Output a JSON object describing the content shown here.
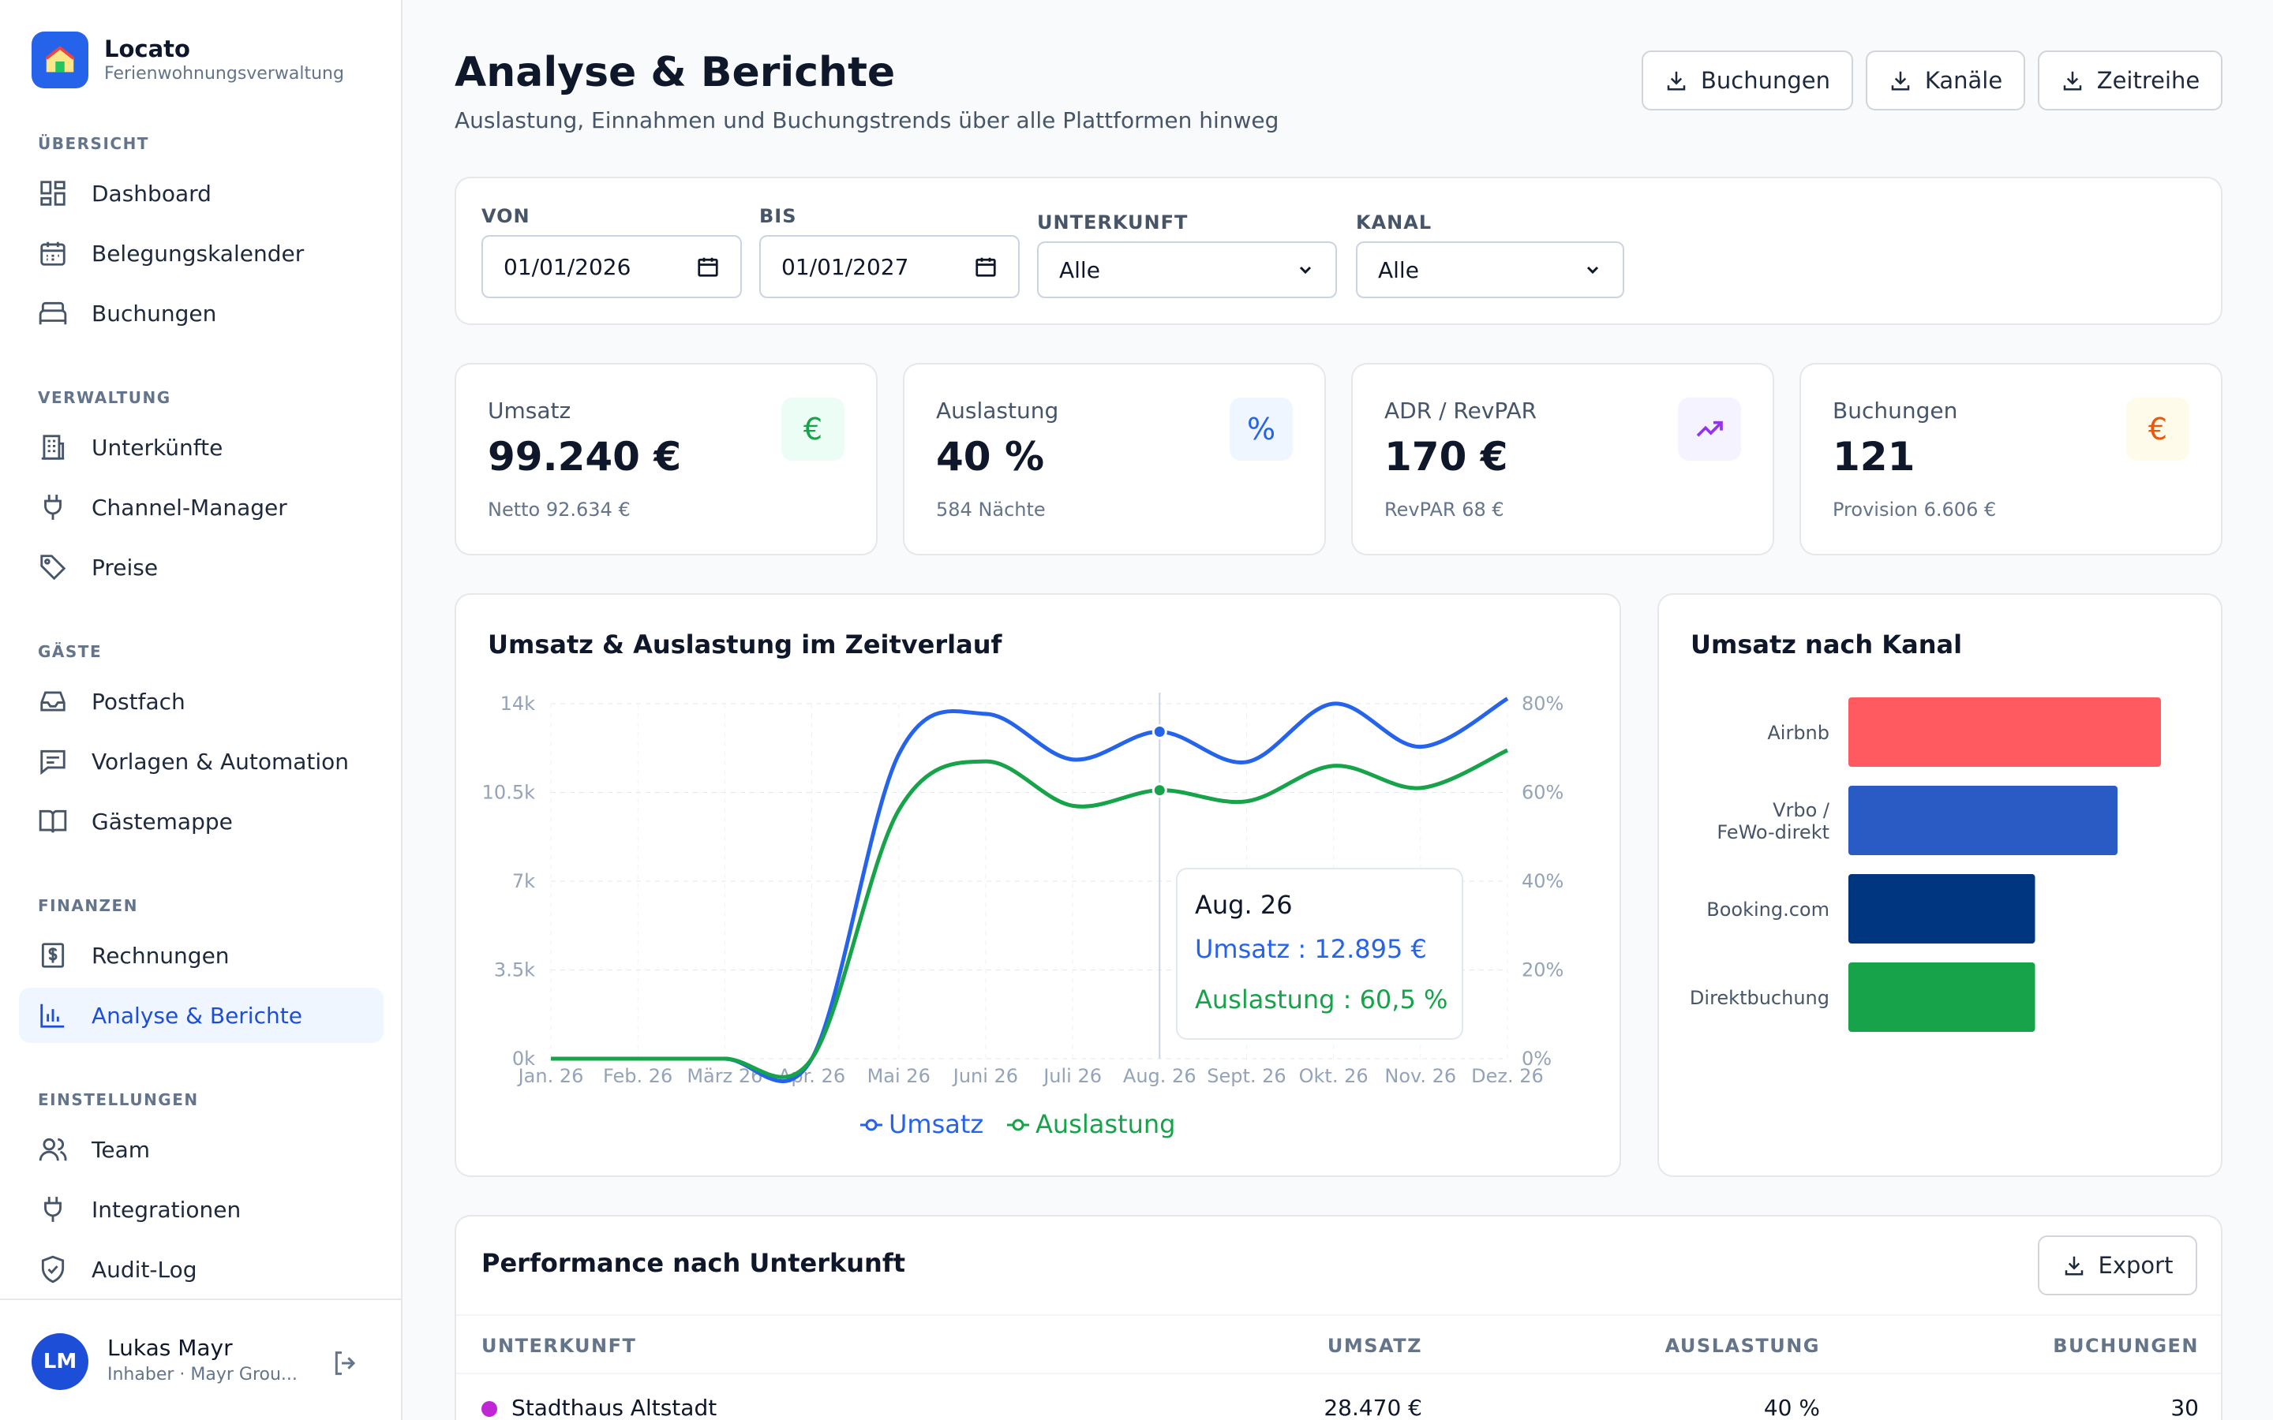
{
  "brand": {
    "name": "Locato",
    "subtitle": "Ferienwohnungsverwaltung"
  },
  "sidebar": {
    "sections": [
      "ÜBERSICHT",
      "VERWALTUNG",
      "GÄSTE",
      "FINANZEN",
      "EINSTELLUNGEN"
    ],
    "items": [
      {
        "label": "Dashboard",
        "icon": "dashboard-icon"
      },
      {
        "label": "Belegungskalender",
        "icon": "calendar-icon"
      },
      {
        "label": "Buchungen",
        "icon": "bed-icon"
      },
      {
        "label": "Unterkünfte",
        "icon": "building-icon"
      },
      {
        "label": "Channel-Manager",
        "icon": "plug-icon"
      },
      {
        "label": "Preise",
        "icon": "tag-icon"
      },
      {
        "label": "Postfach",
        "icon": "inbox-icon"
      },
      {
        "label": "Vorlagen & Automation",
        "icon": "message-icon"
      },
      {
        "label": "Gästemappe",
        "icon": "book-icon"
      },
      {
        "label": "Rechnungen",
        "icon": "invoice-icon"
      },
      {
        "label": "Analyse & Berichte",
        "icon": "chart-icon",
        "active": true
      },
      {
        "label": "Team",
        "icon": "users-icon"
      },
      {
        "label": "Integrationen",
        "icon": "plug-icon"
      },
      {
        "label": "Audit-Log",
        "icon": "shield-icon"
      }
    ]
  },
  "user": {
    "initials": "LM",
    "name": "Lukas Mayr",
    "role": "Inhaber · Mayr Grou..."
  },
  "header": {
    "title": "Analyse & Berichte",
    "subtitle": "Auslastung, Einnahmen und Buchungstrends über alle Plattformen hinweg",
    "buttons": [
      "Buchungen",
      "Kanäle",
      "Zeitreihe"
    ]
  },
  "filters": {
    "from_label": "VON",
    "from_value": "01/01/2026",
    "to_label": "BIS",
    "to_value": "01/01/2027",
    "property_label": "UNTERKUNFT",
    "property_value": "Alle",
    "channel_label": "KANAL",
    "channel_value": "Alle"
  },
  "kpis": [
    {
      "label": "Umsatz",
      "value": "99.240 €",
      "sub": "Netto 92.634 €",
      "icon": "euro-icon",
      "glyph": "€",
      "color": "#16a34a",
      "bg": "#ecfdf5"
    },
    {
      "label": "Auslastung",
      "value": "40 %",
      "sub": "584 Nächte",
      "icon": "percent-icon",
      "glyph": "%",
      "color": "#2563eb",
      "bg": "#eff6ff"
    },
    {
      "label": "ADR / RevPAR",
      "value": "170 €",
      "sub": "RevPAR 68 €",
      "icon": "trend-up-icon",
      "glyph": "",
      "color": "#9333ea",
      "bg": "#f5f3ff"
    },
    {
      "label": "Buchungen",
      "value": "121",
      "sub": "Provision 6.606 €",
      "icon": "euro-icon",
      "glyph": "€",
      "color": "#ea580c",
      "bg": "#fffbeb"
    }
  ],
  "line_chart": {
    "title": "Umsatz & Auslastung im Zeitverlauf",
    "tooltip": {
      "title": "Aug. 26",
      "line1": "Umsatz : 12.895 €",
      "line2": "Auslastung : 60,5 %"
    }
  },
  "bar_chart": {
    "title": "Umsatz nach Kanal"
  },
  "chart_data": [
    {
      "type": "line",
      "title": "Umsatz & Auslastung im Zeitverlauf",
      "categories": [
        "Jan. 26",
        "Feb. 26",
        "März 26",
        "Apr. 26",
        "Mai 26",
        "Juni 26",
        "Juli 26",
        "Aug. 26",
        "Sept. 26",
        "Okt. 26",
        "Nov. 26",
        "Dez. 26"
      ],
      "y_left": {
        "ticks": [
          "0k",
          "3.5k",
          "7k",
          "10.5k",
          "14k"
        ],
        "range": [
          0,
          14000
        ]
      },
      "y_right": {
        "ticks": [
          "0%",
          "20%",
          "40%",
          "60%",
          "80%"
        ],
        "range": [
          0,
          80
        ]
      },
      "series": [
        {
          "name": "Umsatz",
          "axis": "left",
          "color": "#2563eb",
          "values": [
            0,
            0,
            0,
            0,
            12000,
            13600,
            11800,
            12895,
            11700,
            14000,
            12300,
            14200
          ]
        },
        {
          "name": "Auslastung",
          "axis": "right",
          "color": "#16a34a",
          "values": [
            0,
            0,
            0,
            0,
            56,
            67,
            57,
            60.5,
            58,
            66,
            61,
            69.5
          ]
        }
      ],
      "grid": true,
      "legend": "bottom"
    },
    {
      "type": "bar",
      "orientation": "horizontal",
      "title": "Umsatz nach Kanal",
      "categories": [
        "Airbnb",
        "Vrbo / FeWo-direkt",
        "Booking.com",
        "Direktbuchung"
      ],
      "values": [
        36000,
        31000,
        21500,
        21500
      ],
      "colors": [
        "#ff5a5f",
        "#2a5bc4",
        "#003580",
        "#16a34a"
      ]
    }
  ],
  "table": {
    "title": "Performance nach Unterkunft",
    "export_label": "Export",
    "columns": [
      "UNTERKUNFT",
      "UMSATZ",
      "AUSLASTUNG",
      "BUCHUNGEN"
    ],
    "rows": [
      {
        "name": "Stadthaus Altstadt",
        "revenue": "28.470 €",
        "occupancy": "40 %",
        "bookings": "30",
        "color": "#c026d3"
      }
    ]
  }
}
